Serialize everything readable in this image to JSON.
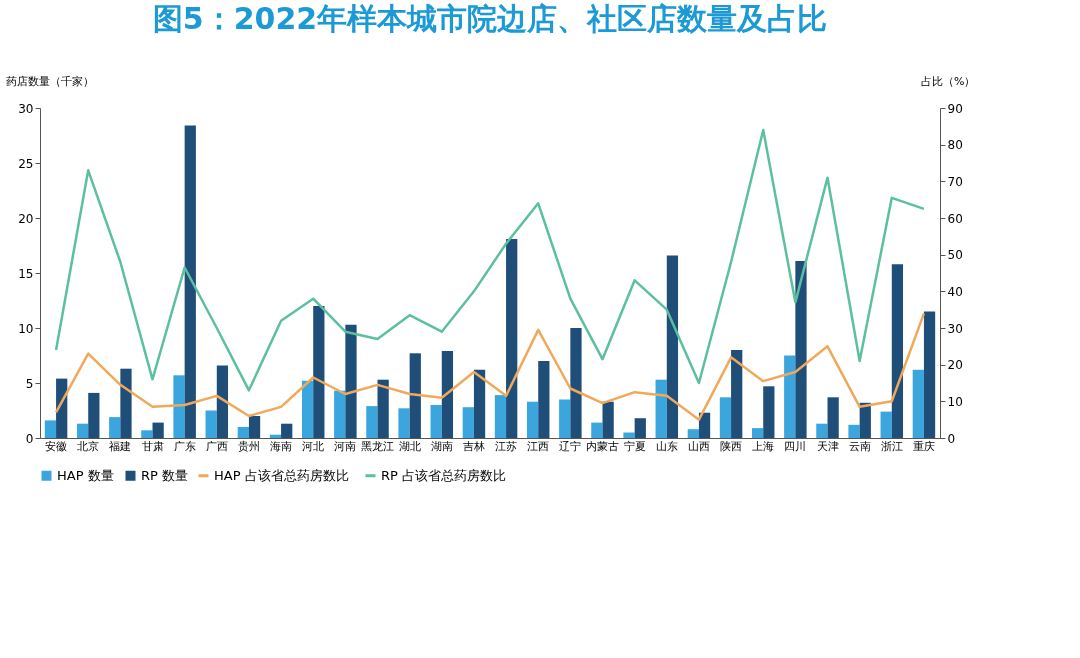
{
  "chart_data": {
    "type": "bar",
    "title": "图5：2022年样本城市院边店、社区店数量及占比",
    "xlabel": null,
    "ylabel": "药店数量（千家）",
    "y2label": "占比（%）",
    "categories": [
      "安徽",
      "北京",
      "福建",
      "甘肃",
      "广东",
      "广西",
      "贵州",
      "海南",
      "河北",
      "河南",
      "黑龙江",
      "湖北",
      "湖南",
      "吉林",
      "江苏",
      "江西",
      "辽宁",
      "内蒙古",
      "宁夏",
      "山东",
      "山西",
      "陕西",
      "上海",
      "四川",
      "天津",
      "云南",
      "浙江",
      "重庆"
    ],
    "ylim": [
      0,
      30
    ],
    "yticks": [
      0,
      5,
      10,
      15,
      20,
      25,
      30
    ],
    "y2lim": [
      0,
      90
    ],
    "y2ticks": [
      0,
      10,
      20,
      30,
      40,
      50,
      60,
      70,
      80,
      90
    ],
    "series": [
      {
        "name": "HAP 占该省总药房数比",
        "type": "line",
        "axis": "y2",
        "color": "#f0a95a",
        "values": [
          7,
          23,
          14.5,
          8.5,
          9,
          11.5,
          6,
          8.5,
          16.5,
          12,
          14.5,
          12,
          11,
          18,
          11.5,
          29.5,
          13.5,
          9.5,
          12.5,
          11.5,
          5,
          22,
          15.5,
          18,
          25,
          8.5,
          10,
          34
        ]
      },
      {
        "name": "RP 占该省总药房数比",
        "type": "line",
        "axis": "y2",
        "color": "#5bbfa0",
        "values": [
          24,
          73,
          48,
          16,
          46.5,
          30,
          13,
          32,
          38,
          29,
          27,
          33.5,
          29,
          40,
          53,
          64,
          38,
          21.5,
          43,
          35,
          15,
          48,
          84,
          37,
          71,
          21,
          65.5,
          62.5
        ]
      },
      {
        "name": "HAP 数量",
        "color": "#3aa6dd",
        "values": [
          1.6,
          1.3,
          1.9,
          0.7,
          5.7,
          2.5,
          1.0,
          0.3,
          5.2,
          4.3,
          2.9,
          2.7,
          3.0,
          2.8,
          3.9,
          3.3,
          3.5,
          1.4,
          0.5,
          5.3,
          0.8,
          3.7,
          0.9,
          7.5,
          1.3,
          1.2,
          2.4,
          6.2
        ]
      },
      {
        "name": "RP 数量",
        "color": "#1f4e79",
        "values": [
          5.4,
          4.1,
          6.3,
          1.4,
          28.4,
          6.6,
          2.0,
          1.3,
          12.0,
          10.3,
          5.3,
          7.7,
          7.9,
          6.2,
          18.1,
          7.0,
          10.0,
          3.3,
          1.8,
          16.6,
          2.3,
          8.0,
          4.7,
          16.1,
          3.7,
          3.2,
          15.8,
          11.5
        ]
      }
    ],
    "legend": "bottom",
    "grid": false,
    "marker": "none",
    "line_style": "solid"
  }
}
